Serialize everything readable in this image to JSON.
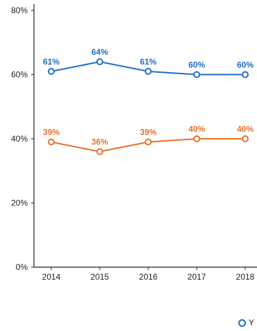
{
  "chart_data": {
    "type": "line",
    "x": [
      "2014",
      "2015",
      "2016",
      "2017",
      "2018"
    ],
    "ylim": [
      0,
      80
    ],
    "yticks": [
      "0%",
      "20%",
      "40%",
      "60%",
      "80%"
    ],
    "ytick_values": [
      0,
      20,
      40,
      60,
      80
    ],
    "grid": false,
    "legend_position": "bottom-right",
    "series": [
      {
        "name": "Y",
        "color": "#1f6fc5",
        "values": [
          61,
          64,
          61,
          60,
          60
        ],
        "labels": [
          "61%",
          "64%",
          "61%",
          "60%",
          "60%"
        ]
      },
      {
        "color": "#e8722a",
        "values": [
          39,
          36,
          39,
          40,
          40
        ],
        "labels": [
          "39%",
          "36%",
          "39%",
          "40%",
          "40%"
        ]
      }
    ]
  }
}
